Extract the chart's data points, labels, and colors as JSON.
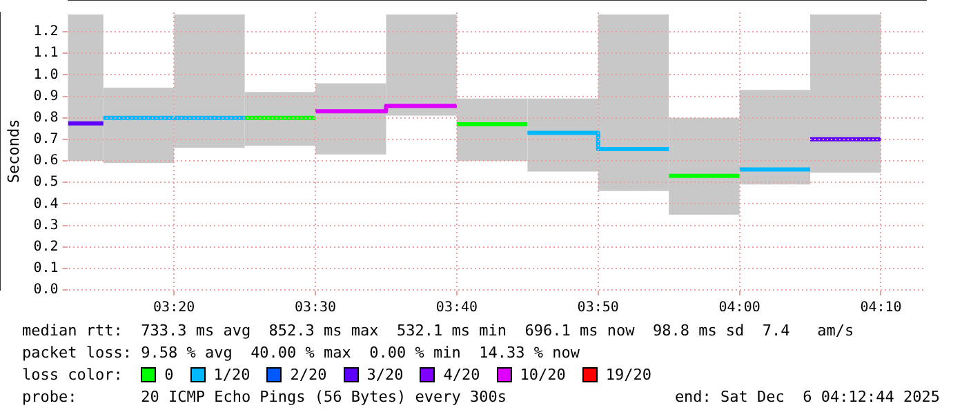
{
  "chart_data": {
    "type": "line",
    "marker": "none",
    "ylabel": "Seconds",
    "legend_title": "loss color:",
    "legend": "bottom",
    "grid": true,
    "xlim": [
      3.2083,
      4.22
    ],
    "xticks": [
      {
        "value": 3.3333,
        "label": "03:20"
      },
      {
        "value": 3.5,
        "label": "03:30"
      },
      {
        "value": 3.6667,
        "label": "03:40"
      },
      {
        "value": 3.8333,
        "label": "03:50"
      },
      {
        "value": 4.0,
        "label": "04:00"
      },
      {
        "value": 4.1667,
        "label": "04:10"
      }
    ],
    "ylim": [
      0,
      1.29
    ],
    "yticks": [
      {
        "value": 0,
        "label": "0.0"
      },
      {
        "value": 0.1,
        "label": "0.1"
      },
      {
        "value": 0.2,
        "label": "0.2"
      },
      {
        "value": 0.3,
        "label": "0.3"
      },
      {
        "value": 0.4,
        "label": "0.4"
      },
      {
        "value": 0.5,
        "label": "0.5"
      },
      {
        "value": 0.6,
        "label": "0.6"
      },
      {
        "value": 0.7,
        "label": "0.7"
      },
      {
        "value": 0.8,
        "label": "0.8"
      },
      {
        "value": 0.9,
        "label": "0.9"
      },
      {
        "value": 1.0,
        "label": "1.0"
      },
      {
        "value": 1.1,
        "label": "1.1"
      },
      {
        "value": 1.2,
        "label": "1.2"
      }
    ],
    "series": [
      {
        "type": "bar",
        "color": "#c8c8c8",
        "x": [
          3.2083,
          3.2917,
          3.375,
          3.4583,
          3.5417,
          3.625,
          3.7083,
          3.7917,
          3.875,
          3.9583,
          4.0417,
          4.125
        ],
        "base": [
          0.6,
          0.59,
          0.66,
          0.67,
          0.63,
          0.81,
          0.6,
          0.55,
          0.46,
          0.35,
          0.49,
          0.545
        ],
        "values": [
          0.68,
          0.35,
          0.62,
          0.25,
          0.33,
          0.47,
          0.29,
          0.34,
          0.82,
          0.45,
          0.44,
          0.735
        ]
      },
      {
        "name": "0",
        "color": "#00ff00",
        "x": [
          3.4167,
          3.5,
          null,
          3.6667,
          3.75,
          null,
          3.9167,
          4.0
        ],
        "values": [
          0.8,
          0.8,
          null,
          0.77,
          0.77,
          null,
          0.53,
          0.53
        ]
      },
      {
        "name": "1/20",
        "color": "#00b8ff",
        "x": [
          3.25,
          3.4167,
          null,
          3.75,
          3.8333,
          3.8333,
          3.9167,
          null,
          4.0,
          4.0833
        ],
        "values": [
          0.8,
          0.8,
          null,
          0.73,
          0.73,
          0.655,
          0.655,
          null,
          0.56,
          0.56
        ]
      },
      {
        "name": "2/20",
        "color": "#0059ff"
      },
      {
        "name": "3/20",
        "color": "#5e00ff",
        "x": [
          3.2083,
          3.25,
          null,
          4.0833,
          4.1667
        ],
        "values": [
          0.774,
          0.774,
          null,
          0.7,
          0.7
        ]
      },
      {
        "name": "4/20",
        "color": "#7e00ff"
      },
      {
        "name": "10/20",
        "color": "#dd00ff",
        "x": [
          3.5,
          3.5833,
          3.5833,
          3.6667
        ],
        "values": [
          0.83,
          0.83,
          0.855,
          0.855
        ]
      },
      {
        "name": "19/20",
        "color": "#ff0000"
      }
    ],
    "annotations": [
      "median rtt:  733.3 ms avg  852.3 ms max  532.1 ms min  696.1 ms now  98.8 ms sd  7.4   am/s",
      "packet loss: 9.58 % avg  40.00 % max  0.00 % min  14.33 % now",
      "probe:       20 ICMP Echo Pings (56 Bytes) every 300s",
      "end: Sat Dec  6 04:12:44 2025"
    ]
  }
}
